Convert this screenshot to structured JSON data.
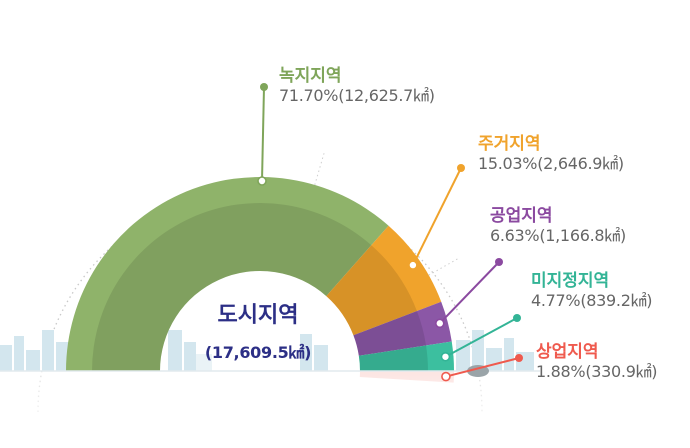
{
  "chart_data": {
    "type": "pie",
    "title": "도시지역",
    "total": "(17,609.5㎢)",
    "slices": [
      {
        "name": "녹지지역",
        "percent": 71.7,
        "area_km2": 12625.7,
        "value_label": "71.70%(12,625.7㎢)",
        "color": "#8fb36a",
        "label_color": "#7fa55a"
      },
      {
        "name": "주거지역",
        "percent": 15.03,
        "area_km2": 2646.9,
        "value_label": "15.03%(2,646.9㎢)",
        "color": "#f0a32c",
        "label_color": "#f0a32c"
      },
      {
        "name": "공업지역",
        "percent": 6.63,
        "area_km2": 1166.8,
        "value_label": "6.63%(1,166.8㎢)",
        "color": "#8b57a6",
        "label_color": "#8b4aa0"
      },
      {
        "name": "미지정지역",
        "percent": 4.77,
        "area_km2": 839.2,
        "value_label": "4.77%(839.2㎢)",
        "color": "#3cbf9f",
        "label_color": "#33b496"
      },
      {
        "name": "상업지역",
        "percent": 1.88,
        "area_km2": 330.9,
        "value_label": "1.88%(330.9㎢)",
        "color": "#f2776a",
        "label_color": "#ef5a4e"
      }
    ]
  }
}
